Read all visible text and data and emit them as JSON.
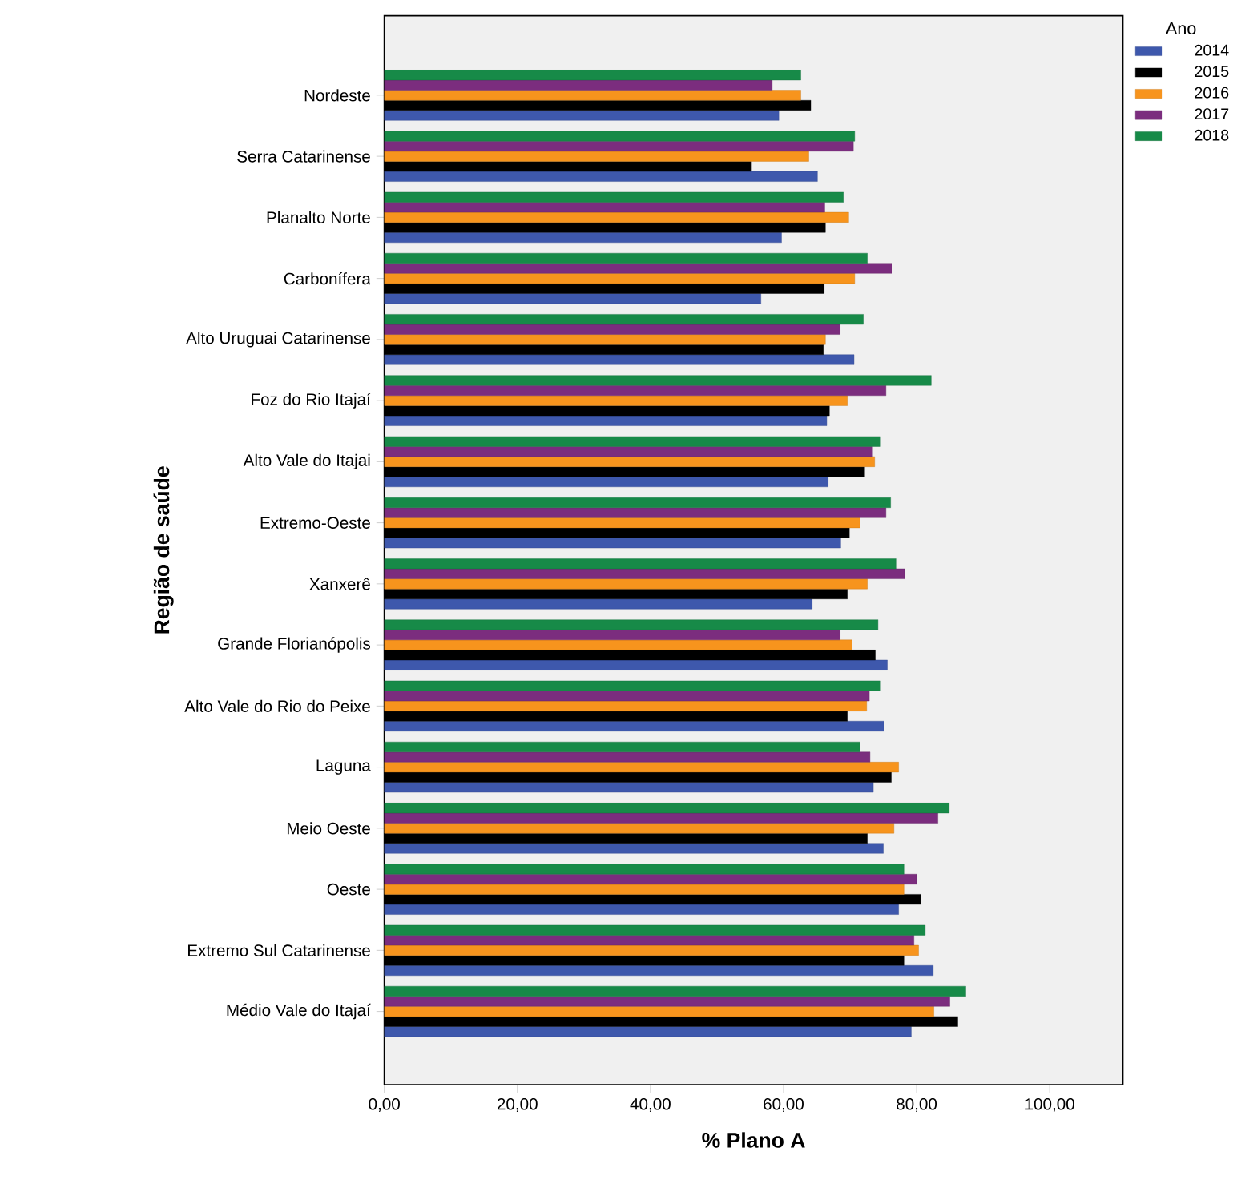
{
  "chart_data": {
    "type": "bar",
    "orientation": "horizontal",
    "xlabel": "% Plano A",
    "ylabel": "Região de saúde",
    "legend_title": "Ano",
    "legend": "top right",
    "grid": false,
    "categories": [
      "Nordeste",
      "Serra Catarinense",
      "Planalto Norte",
      "Carbonífera",
      "Alto Uruguai Catarinense",
      "Foz do Rio Itajaí",
      "Alto Vale do Itajai",
      "Extremo-Oeste",
      "Xanxerê",
      "Grande Florianópolis",
      "Alto Vale do Rio do Peixe",
      "Laguna",
      "Meio Oeste",
      "Oeste",
      "Extremo Sul Catarinense",
      "Médio Vale do Itajaí"
    ],
    "xlim": [
      0,
      111
    ],
    "xticks": [
      {
        "value": 0,
        "label": "0,00"
      },
      {
        "value": 20,
        "label": "20,00"
      },
      {
        "value": 40,
        "label": "40,00"
      },
      {
        "value": 60,
        "label": "60,00"
      },
      {
        "value": 80,
        "label": "80,00"
      },
      {
        "value": 100,
        "label": "100,00"
      }
    ],
    "series": [
      {
        "name": "2014",
        "color": "#3e58ac",
        "values": [
          59.3,
          65.1,
          59.7,
          56.6,
          70.6,
          66.5,
          66.7,
          68.6,
          64.3,
          75.6,
          75.1,
          73.5,
          75.0,
          77.3,
          82.5,
          79.2
        ]
      },
      {
        "name": "2015",
        "color": "#000000",
        "values": [
          64.1,
          55.2,
          66.3,
          66.1,
          66.0,
          66.9,
          72.2,
          69.9,
          69.6,
          73.8,
          69.6,
          76.2,
          72.6,
          80.6,
          78.1,
          86.2
        ]
      },
      {
        "name": "2016",
        "color": "#f7941d",
        "values": [
          62.6,
          63.8,
          69.8,
          70.7,
          66.3,
          69.6,
          73.7,
          71.5,
          72.6,
          70.3,
          72.5,
          77.3,
          76.6,
          78.1,
          80.3,
          82.6
        ]
      },
      {
        "name": "2017",
        "color": "#7b2d7e",
        "values": [
          58.3,
          70.5,
          66.2,
          76.3,
          68.5,
          75.4,
          73.4,
          75.4,
          78.2,
          68.5,
          72.9,
          73.0,
          83.2,
          80.0,
          79.6,
          85.0
        ]
      },
      {
        "name": "2018",
        "color": "#178a48",
        "values": [
          62.6,
          70.7,
          69.0,
          72.6,
          72.0,
          82.2,
          74.6,
          76.1,
          76.9,
          74.2,
          74.6,
          71.5,
          84.9,
          78.1,
          81.3,
          87.4
        ]
      }
    ]
  }
}
